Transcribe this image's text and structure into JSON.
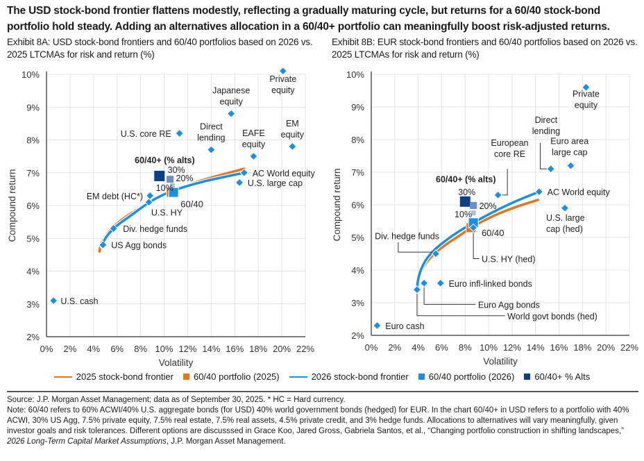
{
  "headline": "The USD stock-bond frontier flattens modestly, reflecting a gradually maturing cycle, but returns for a 60/40 stock-bond portfolio hold steady. Adding an alternatives allocation in a 60/40+ portfolio can meaningfully boost risk-adjusted returns.",
  "colors": {
    "frontier_2025": "#e8741a",
    "frontier_2026": "#1a8fe8",
    "asset": "#1a8fe8",
    "alts_30": "#0b3f86",
    "alts_20": "#6f8fbf",
    "alts_10": "#a9bcd9",
    "grid": "#e3e3e3"
  },
  "legend": [
    {
      "label": "2025 stock-bond frontier",
      "kind": "line",
      "color": "#e8741a"
    },
    {
      "label": "60/40 portfolio (2025)",
      "kind": "square",
      "color": "#e8741a"
    },
    {
      "label": "2026 stock-bond frontier",
      "kind": "line",
      "color": "#1a8fe8"
    },
    {
      "label": "60/40 portfolio (2026)",
      "kind": "square",
      "color": "#1a8fe8"
    },
    {
      "label": "60/40+ % Alts",
      "kind": "square",
      "color": "#0b3f86"
    }
  ],
  "footer": {
    "source": "Source: J.P. Morgan Asset Management; data as of September 30, 2025. * HC = Hard currency.",
    "note_a": "Note: 60/40 refers to 60% ACWI/40% U.S. aggregate bonds (for USD) 40% world government bonds (hedged) for EUR. In the chart 60/40+ in USD refers to a portfolio with 40% ACWI, 30% US Agg, 7.5% private equity, 7.5% real estate, 7.5% real assets, 4.5% private credit, and 3% hedge funds. Allocations to alternatives will vary meaningfully, given investor goals and risk tolerances. Different options are discusssed in Grace Koo, Jared Gross, Gabriela Santos, et al., “Changing portfolio construction in shifting landscapes,” ",
    "note_italic": "2026 Long-Term Capital Market Assumptions",
    "note_b": ", J.P. Morgan Asset Management."
  },
  "chart_data": [
    {
      "type": "scatter",
      "title": "Exhibit 8A: USD stock-bond frontiers and 60/40 portfolios based on 2026 vs. 2025 LTCMAs for risk and return (%)",
      "xlabel": "Volatility",
      "ylabel": "Compound return",
      "xlim": [
        0,
        22
      ],
      "ylim": [
        2,
        10
      ],
      "xticks": [
        "0%",
        "2%",
        "4%",
        "6%",
        "8%",
        "10%",
        "12%",
        "14%",
        "16%",
        "18%",
        "20%",
        "22%"
      ],
      "yticks": [
        "2%",
        "3%",
        "4%",
        "5%",
        "6%",
        "7%",
        "8%",
        "9%",
        "10%"
      ],
      "grid": true,
      "legend_position": "bottom",
      "frontiers": [
        {
          "name": "2025 stock-bond frontier",
          "color": "#e8741a",
          "x": [
            4.5,
            4.6,
            4.9,
            5.5,
            6.5,
            8.0,
            9.5,
            11.0,
            13.0,
            15.0,
            16.8
          ],
          "y": [
            4.6,
            4.8,
            5.0,
            5.3,
            5.6,
            5.95,
            6.25,
            6.5,
            6.75,
            6.95,
            7.12
          ]
        },
        {
          "name": "2026 stock-bond frontier",
          "color": "#1a8fe8",
          "x": [
            4.7,
            4.9,
            5.3,
            6.0,
            7.0,
            8.7,
            10.0,
            11.5,
            13.5,
            15.5,
            16.8
          ],
          "y": [
            4.75,
            4.95,
            5.15,
            5.4,
            5.65,
            6.1,
            6.35,
            6.55,
            6.75,
            6.9,
            7.0
          ]
        }
      ],
      "portfolios": [
        {
          "name": "60/40 portfolio (2025)",
          "x": 10.6,
          "y": 6.4,
          "color": "#e8741a"
        },
        {
          "name": "60/40 portfolio (2026)",
          "x": 10.8,
          "y": 6.4,
          "color": "#1a8fe8",
          "label": "60/40",
          "lx": 11.4,
          "ly": 6.05,
          "anchor": "start"
        }
      ],
      "alts": {
        "title": "60/40+ (% alts)",
        "title_x": 7.5,
        "title_y": 7.4,
        "points": [
          {
            "label": "30%",
            "x": 9.6,
            "y": 6.9,
            "size": "large",
            "color": "#0b3f86",
            "lx": 10.3,
            "ly": 7.1,
            "anchor": "start"
          },
          {
            "label": "20%",
            "x": 10.5,
            "y": 6.8,
            "size": "medium",
            "color": "#6f8fbf",
            "lx": 11.0,
            "ly": 6.85,
            "anchor": "start"
          },
          {
            "label": "10%",
            "x": 10.7,
            "y": 6.6,
            "size": "small",
            "color": "#a9bcd9",
            "lx": 9.3,
            "ly": 6.55,
            "anchor": "start"
          }
        ]
      },
      "assets": [
        {
          "name": "U.S. cash",
          "x": 0.6,
          "y": 3.1,
          "label": [
            "U.S. cash"
          ],
          "lx": 1.2,
          "ly": 3.1,
          "anchor": "start"
        },
        {
          "name": "US Agg bonds",
          "x": 4.8,
          "y": 4.8,
          "label": [
            "US Agg bonds"
          ],
          "lx": 5.5,
          "ly": 4.8,
          "anchor": "start"
        },
        {
          "name": "Div. hedge funds",
          "x": 5.7,
          "y": 5.3,
          "label": [
            "Div. hedge funds"
          ],
          "lx": 6.5,
          "ly": 5.3,
          "anchor": "start"
        },
        {
          "name": "U.S. HY",
          "x": 8.7,
          "y": 6.1,
          "label": [
            "U.S. HY"
          ],
          "lx": 8.9,
          "ly": 5.8,
          "anchor": "start"
        },
        {
          "name": "EM debt (HC*)",
          "x": 8.8,
          "y": 6.3,
          "label": [
            "EM debt (HC*)"
          ],
          "lx": 8.2,
          "ly": 6.3,
          "anchor": "end"
        },
        {
          "name": "U.S. core RE",
          "x": 11.3,
          "y": 8.2,
          "label": [
            "U.S. core RE"
          ],
          "lx": 10.6,
          "ly": 8.2,
          "anchor": "end"
        },
        {
          "name": "Direct lending",
          "x": 14.0,
          "y": 7.7,
          "label": [
            "Direct",
            "lending"
          ],
          "lx": 14.0,
          "ly": 8.25,
          "anchor": "middle"
        },
        {
          "name": "Japanese equity",
          "x": 15.7,
          "y": 8.8,
          "label": [
            "Japanese",
            "equity"
          ],
          "lx": 15.7,
          "ly": 9.35,
          "anchor": "middle"
        },
        {
          "name": "EAFE equity",
          "x": 17.6,
          "y": 7.5,
          "label": [
            "EAFE",
            "equity"
          ],
          "lx": 17.6,
          "ly": 8.05,
          "anchor": "middle"
        },
        {
          "name": "AC World equity",
          "x": 16.8,
          "y": 7.0,
          "label": [
            "AC World equity"
          ],
          "lx": 17.5,
          "ly": 7.0,
          "anchor": "start"
        },
        {
          "name": "U.S. large cap",
          "x": 16.4,
          "y": 6.7,
          "label": [
            "U.S. large cap"
          ],
          "lx": 17.1,
          "ly": 6.7,
          "anchor": "start"
        },
        {
          "name": "EM equity",
          "x": 20.9,
          "y": 7.8,
          "label": [
            "EM",
            "equity"
          ],
          "lx": 20.9,
          "ly": 8.35,
          "anchor": "middle"
        },
        {
          "name": "Private equity",
          "x": 20.1,
          "y": 10.1,
          "label": [
            "Private",
            "equity"
          ],
          "lx": 20.1,
          "ly": 9.7,
          "anchor": "middle"
        }
      ]
    },
    {
      "type": "scatter",
      "title": "Exhibit 8B: EUR stock-bond frontiers and 60/40 portfolios based on 2026 vs. 2025 LTCMAs for risk and return (%)",
      "xlabel": "Volatility",
      "ylabel": "Compound return",
      "xlim": [
        0,
        22
      ],
      "ylim": [
        2,
        10
      ],
      "xticks": [
        "0%",
        "2%",
        "4%",
        "6%",
        "8%",
        "10%",
        "12%",
        "14%",
        "16%",
        "18%",
        "20%",
        "22%"
      ],
      "yticks": [
        "2%",
        "3%",
        "4%",
        "5%",
        "6%",
        "7%",
        "8%",
        "9%",
        "10%"
      ],
      "grid": true,
      "legend_position": "bottom",
      "frontiers": [
        {
          "name": "2025 stock-bond frontier",
          "color": "#e8741a",
          "x": [
            3.9,
            3.95,
            4.1,
            4.5,
            5.2,
            6.2,
            7.5,
            8.5,
            10.0,
            12.0,
            14.2
          ],
          "y": [
            3.35,
            3.6,
            3.85,
            4.15,
            4.45,
            4.75,
            5.05,
            5.3,
            5.6,
            5.9,
            6.15
          ]
        },
        {
          "name": "2026 stock-bond frontier",
          "color": "#1a8fe8",
          "x": [
            3.9,
            3.95,
            4.15,
            4.6,
            5.3,
            6.3,
            7.5,
            8.7,
            10.2,
            12.2,
            14.3
          ],
          "y": [
            3.4,
            3.65,
            3.95,
            4.3,
            4.6,
            4.9,
            5.2,
            5.45,
            5.75,
            6.1,
            6.4
          ]
        }
      ],
      "portfolios": [
        {
          "name": "60/40 portfolio (2025)",
          "x": 8.5,
          "y": 5.3,
          "color": "#e8741a"
        },
        {
          "name": "60/40 portfolio (2026)",
          "x": 8.7,
          "y": 5.45,
          "color": "#1a8fe8",
          "label": "60/40",
          "lx": 9.4,
          "ly": 5.15,
          "anchor": "start"
        }
      ],
      "alts": {
        "title": "60/40+ (% alts)",
        "title_x": 5.5,
        "title_y": 6.8,
        "points": [
          {
            "label": "30%",
            "x": 8.0,
            "y": 6.1,
            "size": "large",
            "color": "#0b3f86",
            "lx": 7.4,
            "ly": 6.4,
            "anchor": "start"
          },
          {
            "label": "20%",
            "x": 8.7,
            "y": 5.98,
            "size": "medium",
            "color": "#6f8fbf",
            "lx": 9.2,
            "ly": 5.98,
            "anchor": "start"
          },
          {
            "label": "10%",
            "x": 8.7,
            "y": 5.75,
            "size": "small",
            "color": "#a9bcd9",
            "lx": 7.1,
            "ly": 5.72,
            "anchor": "start"
          }
        ]
      },
      "assets": [
        {
          "name": "Euro cash",
          "x": 0.5,
          "y": 2.3,
          "label": [
            "Euro cash"
          ],
          "lx": 1.2,
          "ly": 2.3,
          "anchor": "start"
        },
        {
          "name": "World govt bonds (hed)",
          "x": 3.9,
          "y": 3.4,
          "label": [
            "World govt bonds (hed)"
          ],
          "lx": 11.6,
          "ly": 2.6,
          "anchor": "start",
          "leader": [
            [
              3.9,
              3.4
            ],
            [
              3.9,
              2.6
            ],
            [
              11.4,
              2.6
            ]
          ]
        },
        {
          "name": "Euro Agg bonds",
          "x": 4.5,
          "y": 3.6,
          "label": [
            "Euro Agg bonds"
          ],
          "lx": 9.1,
          "ly": 2.95,
          "anchor": "start",
          "leader": [
            [
              4.5,
              3.6
            ],
            [
              4.5,
              2.95
            ],
            [
              8.9,
              2.95
            ]
          ]
        },
        {
          "name": "Euro infl-linked bonds",
          "x": 5.9,
          "y": 3.6,
          "label": [
            "Euro infl-linked bonds"
          ],
          "lx": 6.6,
          "ly": 3.6,
          "anchor": "start"
        },
        {
          "name": "Div. hedge funds",
          "x": 5.5,
          "y": 4.5,
          "label": [
            "Div. hedge funds"
          ],
          "lx": 0.3,
          "ly": 5.05,
          "anchor": "start",
          "leader": [
            [
              5.2,
              4.55
            ],
            [
              2.3,
              4.55
            ],
            [
              2.3,
              4.85
            ]
          ]
        },
        {
          "name": "U.S. HY (hed)",
          "x": 8.7,
          "y": 5.3,
          "label": [
            "U.S. HY (hed)"
          ],
          "lx": 9.4,
          "ly": 4.35,
          "anchor": "start",
          "leader": [
            [
              8.7,
              5.3
            ],
            [
              8.7,
              4.35
            ],
            [
              9.2,
              4.35
            ]
          ]
        },
        {
          "name": "European core RE",
          "x": 10.8,
          "y": 6.3,
          "label": [
            "European",
            "core RE"
          ],
          "lx": 11.8,
          "ly": 7.75,
          "anchor": "middle",
          "leader": [
            [
              11.1,
              6.3
            ],
            [
              11.6,
              6.3
            ],
            [
              11.6,
              7.1
            ]
          ]
        },
        {
          "name": "Direct lending",
          "x": 15.3,
          "y": 7.1,
          "label": [
            "Direct",
            "lending"
          ],
          "lx": 14.9,
          "ly": 8.45,
          "anchor": "middle",
          "leader": [
            [
              15.0,
              7.1
            ],
            [
              14.4,
              7.1
            ],
            [
              14.4,
              7.9
            ]
          ]
        },
        {
          "name": "Euro area large cap",
          "x": 17.0,
          "y": 7.2,
          "label": [
            "Euro area",
            "large cap"
          ],
          "lx": 16.9,
          "ly": 7.8,
          "anchor": "middle"
        },
        {
          "name": "AC World equity",
          "x": 14.3,
          "y": 6.4,
          "label": [
            "AC World equity"
          ],
          "lx": 15.0,
          "ly": 6.4,
          "anchor": "start"
        },
        {
          "name": "U.S. large cap (hed)",
          "x": 16.5,
          "y": 5.9,
          "label": [
            "U.S. large",
            "cap (hed)"
          ],
          "lx": 14.9,
          "ly": 5.45,
          "anchor": "start"
        },
        {
          "name": "Private equity",
          "x": 18.3,
          "y": 9.6,
          "label": [
            "Private",
            "equity"
          ],
          "lx": 18.3,
          "ly": 9.25,
          "anchor": "middle"
        }
      ]
    }
  ]
}
